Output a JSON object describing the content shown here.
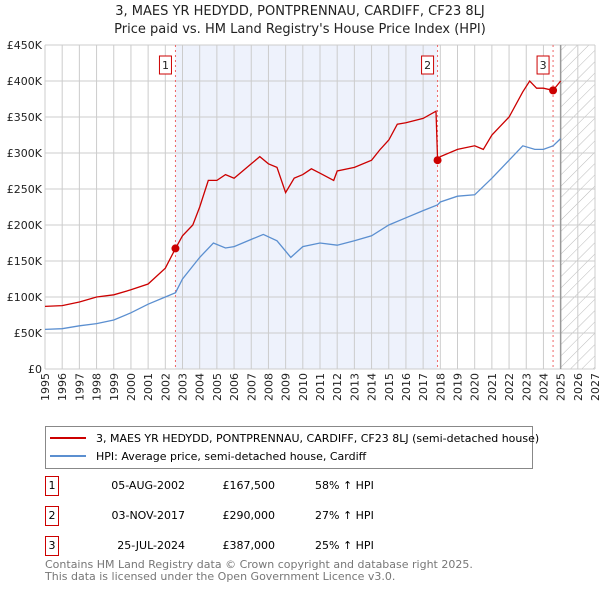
{
  "title": "3, MAES YR HEDYDD, PONTPRENNAU, CARDIFF, CF23 8LJ",
  "subtitle": "Price paid vs. HM Land Registry's House Price Index (HPI)",
  "colors": {
    "red": "#cc0000",
    "blue": "#5b8fd0",
    "shade": "#eef2fc"
  },
  "chart_data": {
    "type": "line",
    "xlim": [
      1995,
      2027
    ],
    "ylim": [
      0,
      450000
    ],
    "x_ticks": [
      "1995",
      "1996",
      "1997",
      "1998",
      "1999",
      "2000",
      "2001",
      "2002",
      "2003",
      "2004",
      "2005",
      "2006",
      "2007",
      "2008",
      "2009",
      "2010",
      "2011",
      "2012",
      "2013",
      "2014",
      "2015",
      "2016",
      "2017",
      "2018",
      "2019",
      "2020",
      "2021",
      "2022",
      "2023",
      "2024",
      "2025",
      "2026",
      "2027"
    ],
    "y_ticks": [
      {
        "v": 0,
        "label": "£0"
      },
      {
        "v": 50000,
        "label": "£50K"
      },
      {
        "v": 100000,
        "label": "£100K"
      },
      {
        "v": 150000,
        "label": "£150K"
      },
      {
        "v": 200000,
        "label": "£200K"
      },
      {
        "v": 250000,
        "label": "£250K"
      },
      {
        "v": 300000,
        "label": "£300K"
      },
      {
        "v": 350000,
        "label": "£350K"
      },
      {
        "v": 400000,
        "label": "£400K"
      },
      {
        "v": 450000,
        "label": "£450K"
      }
    ],
    "grid": true,
    "shaded_range": [
      2002.59,
      2017.84
    ],
    "forecast_from": 2025.0,
    "series": [
      {
        "name": "3, MAES YR HEDYDD, PONTPRENNAU, CARDIFF, CF23 8LJ (semi-detached house)",
        "color": "#cc0000",
        "x": [
          1995,
          1996,
          1997,
          1998,
          1999,
          2000,
          2001,
          2002,
          2002.59,
          2003,
          2003.6,
          2004,
          2004.5,
          2005,
          2005.5,
          2006,
          2006.5,
          2007,
          2007.5,
          2008,
          2008.5,
          2009,
          2009.5,
          2010,
          2010.5,
          2011,
          2011.8,
          2012,
          2013,
          2014,
          2014.5,
          2015,
          2015.5,
          2016,
          2017,
          2017.75,
          2017.84,
          2018,
          2019,
          2020,
          2020.5,
          2021,
          2022,
          2022.8,
          2023.2,
          2023.6,
          2024,
          2024.56,
          2025
        ],
        "y": [
          87000,
          88000,
          93000,
          100000,
          103000,
          110000,
          118000,
          140000,
          167500,
          185000,
          200000,
          225000,
          262000,
          262000,
          270000,
          265000,
          275000,
          285000,
          295000,
          285000,
          280000,
          245000,
          265000,
          270000,
          278000,
          272000,
          262000,
          275000,
          280000,
          290000,
          305000,
          318000,
          340000,
          342000,
          348000,
          358000,
          290000,
          295000,
          305000,
          310000,
          305000,
          325000,
          350000,
          385000,
          400000,
          390000,
          390000,
          387000,
          400000
        ]
      },
      {
        "name": "HPI: Average price, semi-detached house, Cardiff",
        "color": "#5b8fd0",
        "x": [
          1995,
          1996,
          1997,
          1998,
          1999,
          2000,
          2001,
          2002,
          2002.59,
          2003,
          2004,
          2004.8,
          2005.5,
          2006,
          2007,
          2007.7,
          2008.5,
          2009.3,
          2010,
          2011,
          2012,
          2013,
          2014,
          2015,
          2016,
          2017,
          2017.84,
          2018,
          2019,
          2020,
          2021,
          2022,
          2022.8,
          2023.5,
          2024,
          2024.56,
          2025
        ],
        "y": [
          55000,
          56000,
          60000,
          63000,
          68000,
          78000,
          90000,
          100000,
          106000,
          125000,
          155000,
          175000,
          168000,
          170000,
          180000,
          187000,
          178000,
          155000,
          170000,
          175000,
          172000,
          178000,
          185000,
          200000,
          210000,
          220000,
          228000,
          232000,
          240000,
          242000,
          265000,
          290000,
          310000,
          305000,
          305000,
          310000,
          320000
        ]
      }
    ],
    "sales": [
      {
        "label": "1",
        "x": 2002.59,
        "y": 167500
      },
      {
        "label": "2",
        "x": 2017.84,
        "y": 290000
      },
      {
        "label": "3",
        "x": 2024.56,
        "y": 387000
      }
    ]
  },
  "legend": {
    "red_label": "3, MAES YR HEDYDD, PONTPRENNAU, CARDIFF, CF23 8LJ (semi-detached house)",
    "blue_label": "HPI: Average price, semi-detached house, Cardiff"
  },
  "table": [
    {
      "num": "1",
      "date": "05-AUG-2002",
      "price": "£167,500",
      "hpi": "58% ↑ HPI"
    },
    {
      "num": "2",
      "date": "03-NOV-2017",
      "price": "£290,000",
      "hpi": "27% ↑ HPI"
    },
    {
      "num": "3",
      "date": "25-JUL-2024",
      "price": "£387,000",
      "hpi": "25% ↑ HPI"
    }
  ],
  "footer": {
    "line1": "Contains HM Land Registry data © Crown copyright and database right 2025.",
    "line2": "This data is licensed under the Open Government Licence v3.0."
  }
}
